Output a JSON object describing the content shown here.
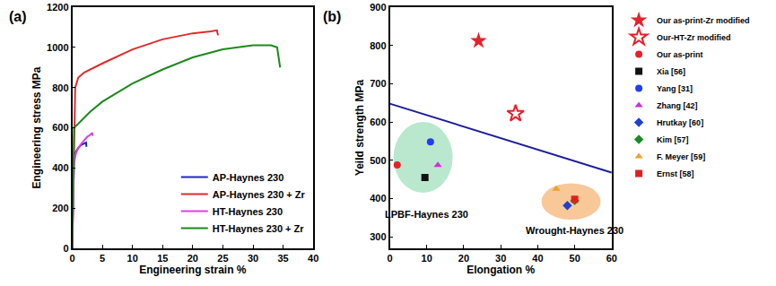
{
  "chart_data": [
    {
      "type": "line",
      "label": "(a)",
      "x_label": "Engineering strain %",
      "y_label": "Engineering stress MPa",
      "xlim": [
        0,
        40
      ],
      "xticks": [
        0,
        5,
        10,
        15,
        20,
        25,
        30,
        35,
        40
      ],
      "ylim": [
        0,
        1200
      ],
      "yticks": [
        0,
        200,
        400,
        600,
        800,
        1000,
        1200
      ],
      "grid": false,
      "legend": "lower right",
      "series": [
        {
          "name": "AP-Haynes 230",
          "color": "#2323c8",
          "x": [
            0,
            0.3,
            0.6,
            1.0,
            1.5,
            2.0,
            2.3,
            2.35
          ],
          "values": [
            0,
            450,
            480,
            500,
            515,
            524,
            526,
            505
          ]
        },
        {
          "name": "AP-Haynes 230 + Zr",
          "color": "#e02a2a",
          "x": [
            0,
            0.5,
            1,
            2,
            5,
            10,
            15,
            20,
            23,
            24,
            24.2
          ],
          "values": [
            0,
            800,
            850,
            875,
            920,
            990,
            1040,
            1070,
            1080,
            1085,
            1060
          ]
        },
        {
          "name": "HT-Haynes 230",
          "color": "#e040e0",
          "x": [
            0,
            0.3,
            0.6,
            1.0,
            1.5,
            2.0,
            2.5,
            3.0,
            3.3,
            3.4
          ],
          "values": [
            0,
            420,
            470,
            500,
            520,
            540,
            555,
            565,
            575,
            560
          ]
        },
        {
          "name": "HT-Haynes 230 + Zr",
          "color": "#1a8a1a",
          "x": [
            0,
            0.3,
            1,
            3,
            5,
            10,
            15,
            20,
            25,
            30,
            33,
            34,
            34.5
          ],
          "values": [
            0,
            600,
            620,
            680,
            730,
            820,
            890,
            950,
            990,
            1010,
            1010,
            1000,
            900
          ]
        }
      ]
    },
    {
      "type": "scatter",
      "label": "(b)",
      "x_label": "Elongation %",
      "y_label": "Yeild strength MPa",
      "xlim": [
        0,
        60
      ],
      "xticks": [
        0,
        10,
        20,
        30,
        40,
        50,
        60
      ],
      "ylim": [
        270,
        900
      ],
      "yticks": [
        300,
        400,
        500,
        600,
        700,
        800,
        900
      ],
      "grid": false,
      "legend": "right",
      "series": [
        {
          "type": "line",
          "color": "#1c1c9c",
          "x": [
            0,
            60
          ],
          "values": [
            648,
            468
          ]
        },
        {
          "name": "Our as-print-Zr modified",
          "color": "#e8202a",
          "marker": "star",
          "x": [
            24
          ],
          "values": [
            812
          ]
        },
        {
          "name": "Our-HT-Zr modified",
          "color": "#e8202a",
          "marker": "star-open",
          "x": [
            34
          ],
          "values": [
            622
          ]
        },
        {
          "name": "Our as-print",
          "color": "#e8202a",
          "marker": "circle",
          "x": [
            2
          ],
          "values": [
            488
          ]
        },
        {
          "name": "Xia [56]",
          "color": "#111111",
          "marker": "square",
          "x": [
            9.5
          ],
          "values": [
            455
          ]
        },
        {
          "name": "Yang [31]",
          "color": "#1f3ff0",
          "marker": "circle",
          "x": [
            11
          ],
          "values": [
            548
          ]
        },
        {
          "name": "Zhang [42]",
          "color": "#d030d8",
          "marker": "triangle-up",
          "x": [
            13
          ],
          "values": [
            487
          ]
        },
        {
          "name": "Hrutkay [60]",
          "color": "#2040d0",
          "marker": "diamond",
          "x": [
            48
          ],
          "values": [
            382
          ]
        },
        {
          "name": "Kim [57]",
          "color": "#1a8a2a",
          "marker": "diamond",
          "x": [
            50
          ],
          "values": [
            395
          ]
        },
        {
          "name": "F. Meyer [59]",
          "color": "#f0a030",
          "marker": "triangle-up",
          "x": [
            45
          ],
          "values": [
            425
          ]
        },
        {
          "name": "Ernst [58]",
          "color": "#e02020",
          "marker": "square",
          "x": [
            50
          ],
          "values": [
            398
          ]
        }
      ],
      "annotations": [
        {
          "text": "LPBF-Haynes 230",
          "x": 10,
          "y": 360,
          "color": "#7fd6a8",
          "region": {
            "x": [
              1,
              17
            ],
            "y": [
              415,
              600
            ]
          }
        },
        {
          "text": "Wrought-Haynes 230",
          "x": 50,
          "y": 318,
          "color": "#f39a45",
          "region": {
            "x": [
              41,
              57
            ],
            "y": [
              345,
              440
            ]
          }
        }
      ]
    }
  ]
}
